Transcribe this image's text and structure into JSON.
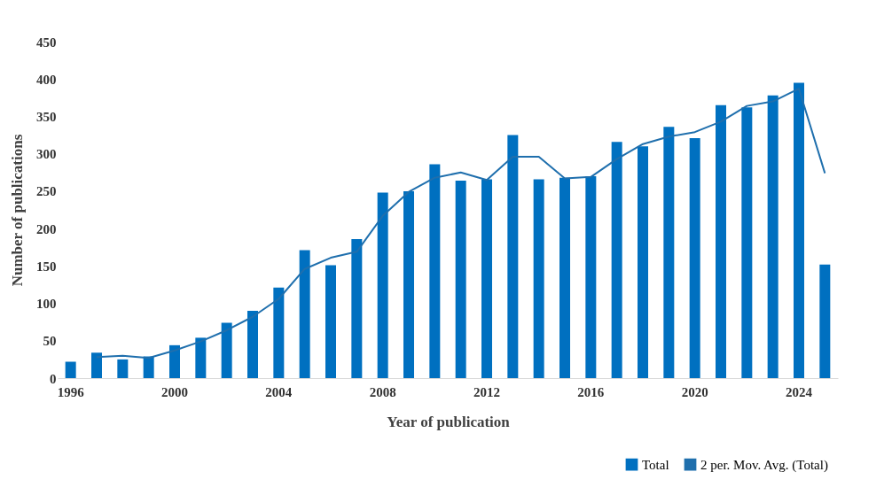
{
  "chart_data": {
    "type": "bar",
    "xlabel": "Year of publication",
    "ylabel": "Number of publications",
    "categories": [
      "1996",
      null,
      null,
      null,
      "2000",
      null,
      null,
      null,
      "2004",
      null,
      null,
      null,
      "2008",
      null,
      null,
      null,
      "2012",
      null,
      null,
      null,
      "2016",
      null,
      null,
      null,
      "2020",
      null,
      null,
      null,
      "2024",
      null
    ],
    "series": [
      {
        "name": "Total",
        "color": "#0070c0",
        "values": [
          22,
          34,
          25,
          29,
          44,
          54,
          74,
          90,
          121,
          171,
          151,
          186,
          248,
          250,
          286,
          264,
          266,
          325,
          266,
          268,
          270,
          316,
          310,
          336,
          321,
          365,
          362,
          378,
          395,
          152
        ]
      },
      {
        "name": "2 per. Mov. Avg. (Total)",
        "type": "line",
        "color": "#1f6fad",
        "values": [
          null,
          28,
          30,
          27,
          37,
          49,
          64,
          82,
          106,
          146,
          161,
          169,
          217,
          249,
          268,
          275,
          265,
          296,
          296,
          267,
          269,
          293,
          313,
          323,
          329,
          343,
          364,
          370,
          387,
          274
        ]
      }
    ],
    "ylim": [
      0,
      450
    ],
    "yticks": [
      0,
      50,
      100,
      150,
      200,
      250,
      300,
      350,
      400,
      450
    ],
    "grid": false,
    "legend": "bottom right",
    "marker": "none",
    "line_style": "solid"
  }
}
